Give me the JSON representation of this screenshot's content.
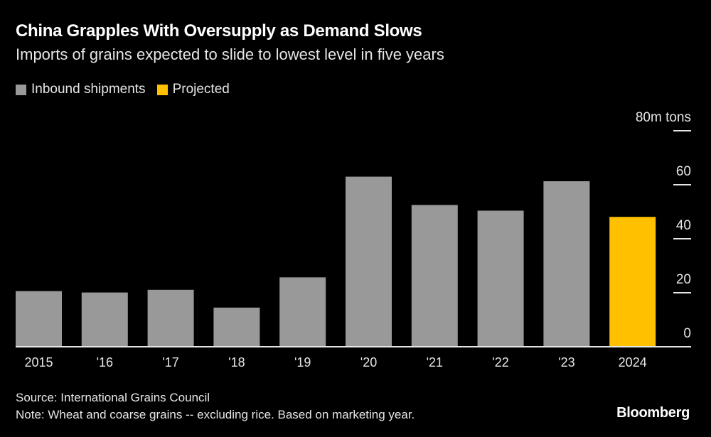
{
  "chart_data": {
    "type": "bar",
    "title": "China Grapples With Oversupply as Demand Slows",
    "subtitle": "Imports of grains expected to slide to lowest level in five years",
    "categories": [
      "2015",
      "'16",
      "'17",
      "'18",
      "'19",
      "'20",
      "'21",
      "'22",
      "'23",
      "2024"
    ],
    "values": [
      20.6,
      20.1,
      21.1,
      14.5,
      25.7,
      63.0,
      52.5,
      50.4,
      61.3,
      48.1
    ],
    "projected": [
      false,
      false,
      false,
      false,
      false,
      false,
      false,
      false,
      false,
      true
    ],
    "legend": [
      {
        "name": "Inbound shipments",
        "color": "#999999"
      },
      {
        "name": "Projected",
        "color": "#FFC000"
      }
    ],
    "yticks": [
      "0",
      "20",
      "40",
      "60",
      "80"
    ],
    "ytick_values": [
      0,
      20,
      40,
      60,
      80
    ],
    "yunit": "m tons",
    "ylim": [
      0,
      80
    ],
    "axis_side": "right",
    "legend_position": "top-left",
    "source": "Source: International Grains Council",
    "note": "Note: Wheat and coarse grains -- excluding rice. Based on marketing year.",
    "brand": "Bloomberg"
  }
}
